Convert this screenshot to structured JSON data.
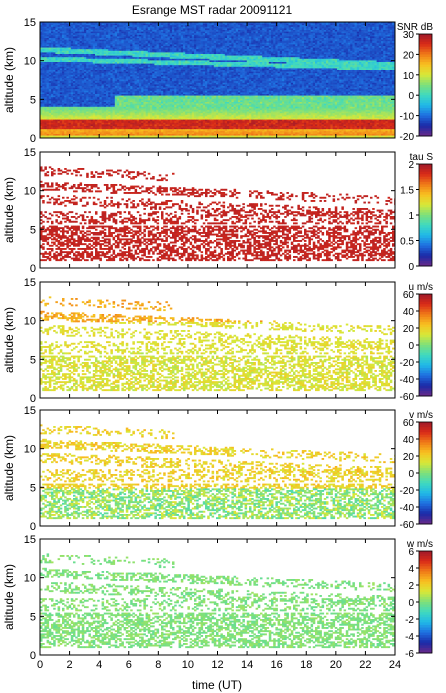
{
  "figure_title": "Esrange MST radar 20091121",
  "x_axis_label": "time (UT)",
  "colorscale": [
    "#6a2a8a",
    "#1a2aa8",
    "#1f6fe0",
    "#20b8e8",
    "#3fd9c0",
    "#7ee07a",
    "#d8e838",
    "#f8c020",
    "#f07a18",
    "#d92a18",
    "#a01a2a"
  ],
  "chart_data": [
    {
      "type": "heatmap",
      "panel": "snr",
      "xlabel": "",
      "ylabel": "altitude (km)",
      "xlim": [
        0,
        24
      ],
      "ylim": [
        0,
        15
      ],
      "xticks": [
        "0",
        "2",
        "4",
        "6",
        "8",
        "10",
        "12",
        "14",
        "16",
        "18",
        "20",
        "22",
        "24"
      ],
      "yticks": [
        "0",
        "5",
        "10",
        "15"
      ],
      "colorbar": {
        "label": "SNR dB",
        "range": [
          -20,
          30
        ],
        "ticks": [
          "30",
          "20",
          "10",
          "0",
          "-10",
          "-20"
        ]
      }
    },
    {
      "type": "heatmap",
      "panel": "tau",
      "xlabel": "",
      "ylabel": "altitude (km)",
      "xlim": [
        0,
        24
      ],
      "ylim": [
        0,
        15
      ],
      "xticks": [
        "0",
        "2",
        "4",
        "6",
        "8",
        "10",
        "12",
        "14",
        "16",
        "18",
        "20",
        "22",
        "24"
      ],
      "yticks": [
        "0",
        "5",
        "10",
        "15"
      ],
      "colorbar": {
        "label": "tau S",
        "range": [
          0,
          2
        ],
        "ticks": [
          "2",
          "1.5",
          "1",
          "0.5",
          "0"
        ]
      }
    },
    {
      "type": "heatmap",
      "panel": "u",
      "xlabel": "",
      "ylabel": "altitude (km)",
      "xlim": [
        0,
        24
      ],
      "ylim": [
        0,
        15
      ],
      "xticks": [
        "0",
        "2",
        "4",
        "6",
        "8",
        "10",
        "12",
        "14",
        "16",
        "18",
        "20",
        "22",
        "24"
      ],
      "yticks": [
        "0",
        "5",
        "10",
        "15"
      ],
      "colorbar": {
        "label": "u m/s",
        "range": [
          -60,
          60
        ],
        "ticks": [
          "60",
          "40",
          "20",
          "0",
          "-20",
          "-40",
          "-60"
        ]
      }
    },
    {
      "type": "heatmap",
      "panel": "v",
      "xlabel": "",
      "ylabel": "altitude (km)",
      "xlim": [
        0,
        24
      ],
      "ylim": [
        0,
        15
      ],
      "xticks": [
        "0",
        "2",
        "4",
        "6",
        "8",
        "10",
        "12",
        "14",
        "16",
        "18",
        "20",
        "22",
        "24"
      ],
      "yticks": [
        "0",
        "5",
        "10",
        "15"
      ],
      "colorbar": {
        "label": "v m/s",
        "range": [
          -60,
          60
        ],
        "ticks": [
          "60",
          "40",
          "20",
          "0",
          "-20",
          "-40",
          "-60"
        ]
      }
    },
    {
      "type": "heatmap",
      "panel": "w",
      "xlabel": "time (UT)",
      "ylabel": "altitude (km)",
      "xlim": [
        0,
        24
      ],
      "ylim": [
        0,
        15
      ],
      "xticks": [
        "0",
        "2",
        "4",
        "6",
        "8",
        "10",
        "12",
        "14",
        "16",
        "18",
        "20",
        "22",
        "24"
      ],
      "yticks": [
        "0",
        "5",
        "10",
        "15"
      ],
      "colorbar": {
        "label": "w m/s",
        "range": [
          -6,
          6
        ],
        "ticks": [
          "6",
          "4",
          "2",
          "0",
          "-2",
          "-4",
          "-6"
        ]
      }
    }
  ]
}
